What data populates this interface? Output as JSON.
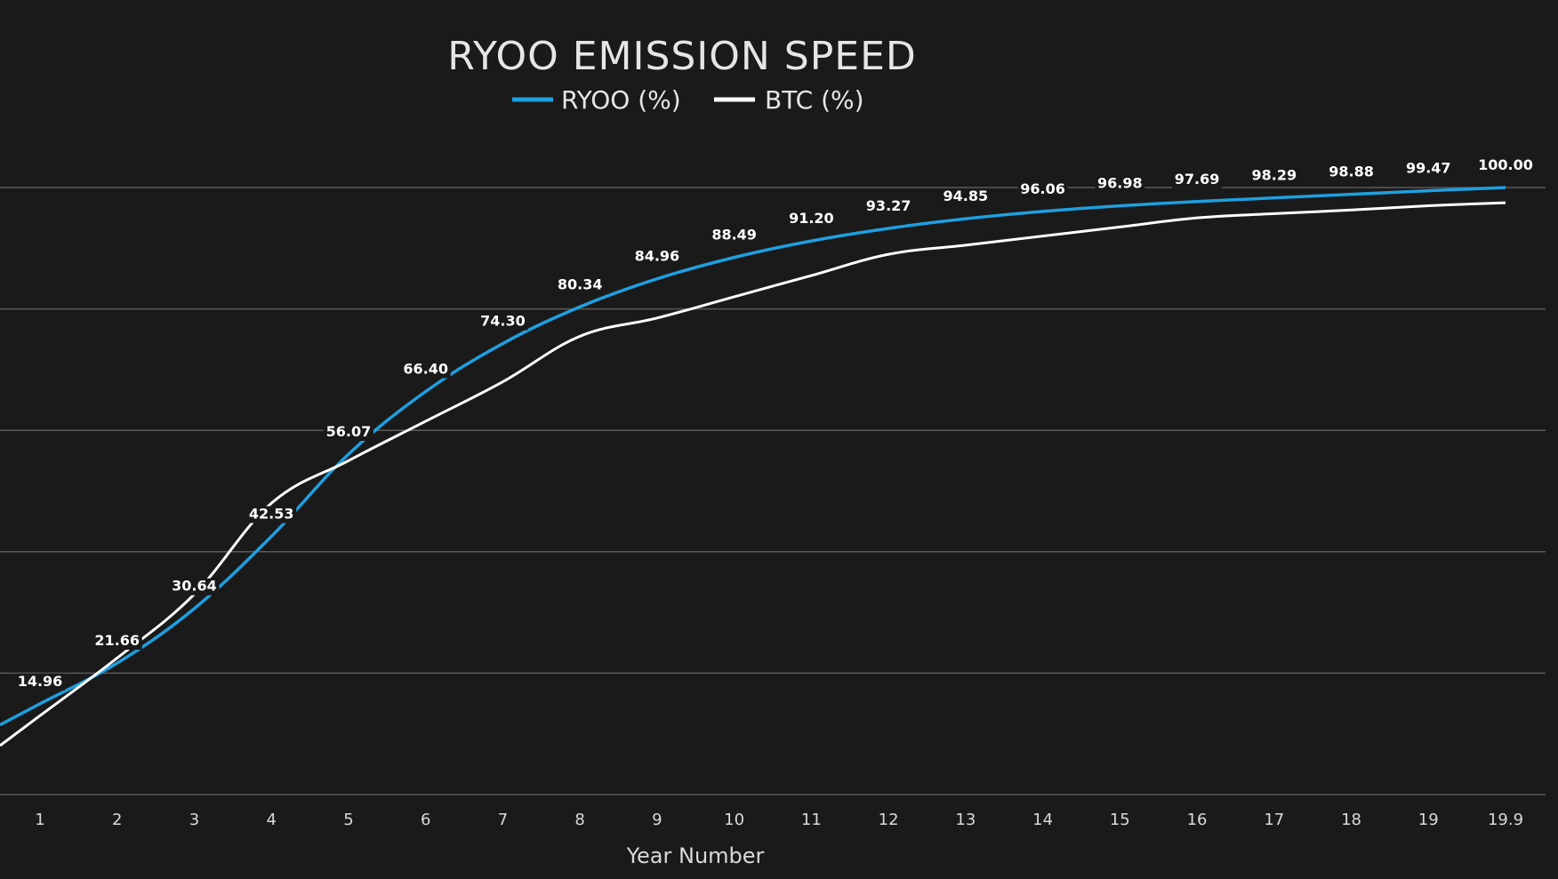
{
  "chart_data": {
    "type": "line",
    "title": "RYOO EMISSION SPEED",
    "xlabel": "Year Number",
    "ylabel": "",
    "categories": [
      "1",
      "2",
      "3",
      "4",
      "5",
      "6",
      "7",
      "8",
      "9",
      "10",
      "11",
      "12",
      "13",
      "14",
      "15",
      "16",
      "17",
      "18",
      "19",
      "19.9"
    ],
    "ylim": [
      0,
      100
    ],
    "grid": true,
    "legend_position": "top-center",
    "series": [
      {
        "name": "RYOO (%)",
        "color": "#1e9fe0",
        "values": [
          14.96,
          21.66,
          30.64,
          42.53,
          56.07,
          66.4,
          74.3,
          80.34,
          84.96,
          88.49,
          91.2,
          93.27,
          94.85,
          96.06,
          96.98,
          97.69,
          98.29,
          98.88,
          99.47,
          100.0
        ],
        "data_labels": [
          "14.96",
          "21.66",
          "30.64",
          "42.53",
          "56.07",
          "66.40",
          "74.30",
          "80.34",
          "84.96",
          "88.49",
          "91.20",
          "93.27",
          "94.85",
          "96.06",
          "96.98",
          "97.69",
          "98.29",
          "98.88",
          "99.47",
          "100.00"
        ]
      },
      {
        "name": "BTC (%)",
        "color": "#ffffff",
        "values": [
          13.0,
          22.5,
          33.0,
          48.0,
          55.0,
          61.5,
          68.0,
          75.5,
          78.5,
          82.0,
          85.5,
          89.0,
          90.5,
          92.0,
          93.5,
          95.0,
          95.7,
          96.3,
          97.0,
          97.5
        ]
      }
    ]
  }
}
